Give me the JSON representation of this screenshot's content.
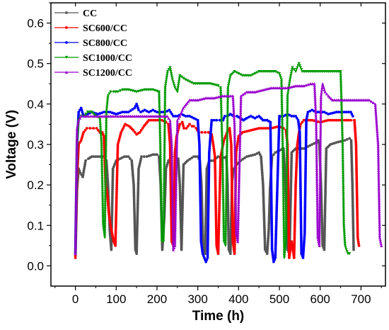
{
  "chart_data": {
    "type": "line",
    "xlabel": "Time (h)",
    "ylabel": "Voltage (V)",
    "xlim": [
      -60,
      760
    ],
    "ylim": [
      -0.05,
      0.65
    ],
    "xticks": [
      0,
      100,
      200,
      300,
      400,
      500,
      600,
      700
    ],
    "yticks": [
      0.0,
      0.1,
      0.2,
      0.3,
      0.4,
      0.5,
      0.6
    ],
    "legend_position": "top-left",
    "grid": false,
    "series": [
      {
        "name": "CC",
        "color": "#555555",
        "marker": "circle",
        "x": [
          0,
          4,
          8,
          12,
          18,
          25,
          32,
          40,
          50,
          60,
          70,
          76,
          80,
          84,
          88,
          92,
          100,
          110,
          120,
          130,
          138,
          143,
          147,
          150,
          155,
          162,
          175,
          190,
          200,
          205,
          209,
          213,
          218,
          222,
          228,
          236,
          245,
          252,
          256,
          260,
          265,
          275,
          290,
          300,
          305,
          309,
          313,
          318,
          322,
          328,
          338,
          350,
          360,
          370,
          373,
          376,
          380,
          384,
          388,
          395,
          405,
          420,
          440,
          450,
          455,
          460,
          465,
          470,
          474,
          477,
          482,
          490,
          500,
          510,
          515,
          520,
          525,
          530,
          540,
          560,
          580,
          590,
          595,
          598,
          602,
          606,
          610,
          615,
          625,
          640,
          660,
          672,
          676,
          679,
          682
        ],
        "y": [
          0.03,
          0.19,
          0.24,
          0.23,
          0.22,
          0.26,
          0.265,
          0.27,
          0.27,
          0.27,
          0.27,
          0.26,
          0.2,
          0.09,
          0.04,
          0.24,
          0.26,
          0.265,
          0.27,
          0.27,
          0.26,
          0.2,
          0.04,
          0.03,
          0.24,
          0.27,
          0.27,
          0.275,
          0.275,
          0.27,
          0.2,
          0.04,
          0.12,
          0.24,
          0.26,
          0.27,
          0.27,
          0.265,
          0.2,
          0.04,
          0.25,
          0.26,
          0.27,
          0.27,
          0.26,
          0.2,
          0.04,
          0.03,
          0.24,
          0.26,
          0.26,
          0.27,
          0.265,
          0.27,
          0.2,
          0.04,
          0.03,
          0.21,
          0.24,
          0.25,
          0.26,
          0.27,
          0.275,
          0.28,
          0.27,
          0.2,
          0.04,
          0.03,
          0.09,
          0.19,
          0.27,
          0.28,
          0.285,
          0.29,
          0.2,
          0.04,
          0.03,
          0.28,
          0.29,
          0.29,
          0.3,
          0.305,
          0.31,
          0.3,
          0.2,
          0.05,
          0.04,
          0.29,
          0.3,
          0.305,
          0.31,
          0.315,
          0.31,
          0.2,
          0.04
        ]
      },
      {
        "name": "SC600/CC",
        "color": "#ff0000",
        "marker": "circle",
        "x": [
          0,
          4,
          8,
          14,
          20,
          28,
          36,
          44,
          52,
          60,
          66,
          70,
          74,
          78,
          82,
          86,
          90,
          94,
          98,
          104,
          112,
          122,
          132,
          142,
          150,
          158,
          168,
          180,
          196,
          212,
          222,
          228,
          232,
          236,
          240,
          244,
          248,
          256,
          262,
          266,
          272,
          280,
          286,
          290,
          296,
          302,
          310,
          318,
          326,
          334,
          338,
          342,
          346,
          350,
          356,
          364,
          372,
          378,
          382,
          386,
          390,
          394,
          400,
          410,
          430,
          450,
          480,
          500,
          510,
          516,
          520,
          524,
          530,
          536,
          540,
          544,
          548,
          552,
          556,
          560,
          564,
          570,
          580,
          600,
          620,
          640,
          660,
          675,
          684,
          688,
          692,
          695
        ],
        "y": [
          0.02,
          0.22,
          0.3,
          0.31,
          0.33,
          0.34,
          0.34,
          0.34,
          0.34,
          0.33,
          0.33,
          0.32,
          0.2,
          0.18,
          0.13,
          0.1,
          0.08,
          0.06,
          0.05,
          0.3,
          0.33,
          0.35,
          0.345,
          0.335,
          0.325,
          0.33,
          0.345,
          0.36,
          0.36,
          0.36,
          0.355,
          0.35,
          0.3,
          0.06,
          0.05,
          0.28,
          0.32,
          0.35,
          0.355,
          0.34,
          0.34,
          0.35,
          0.345,
          0.345,
          0.34,
          0.33,
          0.33,
          0.33,
          0.33,
          0.325,
          0.3,
          0.27,
          0.05,
          0.03,
          0.27,
          0.31,
          0.33,
          0.34,
          0.3,
          0.06,
          0.03,
          0.28,
          0.32,
          0.33,
          0.335,
          0.34,
          0.34,
          0.345,
          0.34,
          0.335,
          0.3,
          0.02,
          0.06,
          0.02,
          0.2,
          0.3,
          0.33,
          0.35,
          0.355,
          0.36,
          0.36,
          0.36,
          0.36,
          0.355,
          0.36,
          0.36,
          0.36,
          0.36,
          0.36,
          0.3,
          0.07,
          0.05
        ]
      },
      {
        "name": "SC800/CC",
        "color": "#0000ff",
        "marker": "circle",
        "x": [
          0,
          4,
          8,
          14,
          20,
          30,
          40,
          55,
          70,
          85,
          100,
          115,
          130,
          145,
          150,
          155,
          160,
          170,
          180,
          190,
          200,
          210,
          220,
          230,
          240,
          250,
          260,
          270,
          280,
          290,
          300,
          304,
          308,
          312,
          316,
          320,
          324,
          328,
          334,
          340,
          346,
          354,
          362,
          366,
          372,
          380,
          388,
          396,
          404,
          412,
          420,
          430,
          440,
          450,
          460,
          470,
          478,
          482,
          486,
          490,
          500,
          510,
          520,
          530,
          540,
          546,
          550,
          554,
          558,
          562,
          566,
          570,
          580,
          590,
          600,
          610,
          620,
          640,
          660,
          675,
          680
        ],
        "y": [
          0.03,
          0.3,
          0.38,
          0.39,
          0.37,
          0.375,
          0.38,
          0.375,
          0.38,
          0.38,
          0.375,
          0.38,
          0.38,
          0.39,
          0.4,
          0.385,
          0.38,
          0.385,
          0.38,
          0.385,
          0.38,
          0.38,
          0.38,
          0.385,
          0.37,
          0.37,
          0.375,
          0.37,
          0.37,
          0.365,
          0.36,
          0.3,
          0.06,
          0.03,
          0.02,
          0.01,
          0.02,
          0.28,
          0.36,
          0.36,
          0.36,
          0.36,
          0.36,
          0.37,
          0.37,
          0.375,
          0.37,
          0.37,
          0.365,
          0.36,
          0.365,
          0.37,
          0.365,
          0.37,
          0.36,
          0.36,
          0.355,
          0.04,
          0.01,
          0.02,
          0.37,
          0.37,
          0.375,
          0.37,
          0.37,
          0.36,
          0.33,
          0.03,
          0.02,
          0.08,
          0.36,
          0.38,
          0.385,
          0.38,
          0.38,
          0.38,
          0.375,
          0.38,
          0.38,
          0.38,
          0.37
        ]
      },
      {
        "name": "SC1000/CC",
        "color": "#009900",
        "marker": "triangle-down",
        "x": [
          0,
          4,
          8,
          14,
          22,
          30,
          40,
          50,
          60,
          64,
          68,
          72,
          76,
          80,
          86,
          94,
          104,
          116,
          130,
          150,
          170,
          190,
          205,
          208,
          212,
          216,
          220,
          226,
          232,
          238,
          244,
          250,
          256,
          270,
          290,
          310,
          330,
          350,
          356,
          360,
          364,
          368,
          374,
          380,
          390,
          410,
          430,
          450,
          470,
          490,
          500,
          505,
          508,
          512,
          516,
          520,
          526,
          532,
          540,
          548,
          556,
          566,
          576,
          590,
          610,
          630,
          650,
          655,
          658,
          661,
          664,
          668,
          672
        ],
        "y": [
          0.03,
          0.3,
          0.36,
          0.37,
          0.37,
          0.38,
          0.38,
          0.37,
          0.365,
          0.3,
          0.1,
          0.07,
          0.38,
          0.42,
          0.43,
          0.43,
          0.43,
          0.435,
          0.435,
          0.43,
          0.435,
          0.435,
          0.43,
          0.3,
          0.06,
          0.06,
          0.44,
          0.48,
          0.49,
          0.46,
          0.44,
          0.43,
          0.47,
          0.46,
          0.45,
          0.45,
          0.45,
          0.445,
          0.44,
          0.3,
          0.06,
          0.05,
          0.44,
          0.47,
          0.48,
          0.47,
          0.47,
          0.48,
          0.48,
          0.48,
          0.475,
          0.46,
          0.3,
          0.02,
          0.06,
          0.42,
          0.46,
          0.49,
          0.48,
          0.5,
          0.48,
          0.48,
          0.48,
          0.48,
          0.48,
          0.48,
          0.48,
          0.3,
          0.1,
          0.05,
          0.04,
          0.03,
          0.03
        ]
      },
      {
        "name": "SC1200/CC",
        "color": "#9900cc",
        "marker": "triangle-up",
        "x": [
          0,
          4,
          8,
          14,
          22,
          32,
          44,
          60,
          76,
          92,
          110,
          130,
          150,
          170,
          190,
          205,
          215,
          225,
          232,
          236,
          240,
          244,
          250,
          256,
          264,
          280,
          300,
          320,
          340,
          360,
          370,
          380,
          386,
          390,
          394,
          398,
          406,
          420,
          440,
          460,
          480,
          500,
          520,
          540,
          560,
          576,
          586,
          590,
          594,
          598,
          602,
          606,
          612,
          620,
          630,
          640,
          660,
          680,
          700,
          720,
          735,
          742,
          746,
          750
        ],
        "y": [
          0.03,
          0.34,
          0.36,
          0.37,
          0.37,
          0.37,
          0.37,
          0.37,
          0.37,
          0.37,
          0.37,
          0.37,
          0.37,
          0.37,
          0.37,
          0.37,
          0.37,
          0.37,
          0.36,
          0.3,
          0.04,
          0.05,
          0.36,
          0.37,
          0.39,
          0.41,
          0.41,
          0.415,
          0.415,
          0.42,
          0.42,
          0.42,
          0.42,
          0.35,
          0.08,
          0.06,
          0.42,
          0.43,
          0.43,
          0.435,
          0.44,
          0.44,
          0.44,
          0.445,
          0.445,
          0.45,
          0.45,
          0.36,
          0.07,
          0.05,
          0.42,
          0.45,
          0.43,
          0.42,
          0.41,
          0.41,
          0.41,
          0.41,
          0.41,
          0.41,
          0.4,
          0.3,
          0.07,
          0.05
        ]
      }
    ]
  }
}
